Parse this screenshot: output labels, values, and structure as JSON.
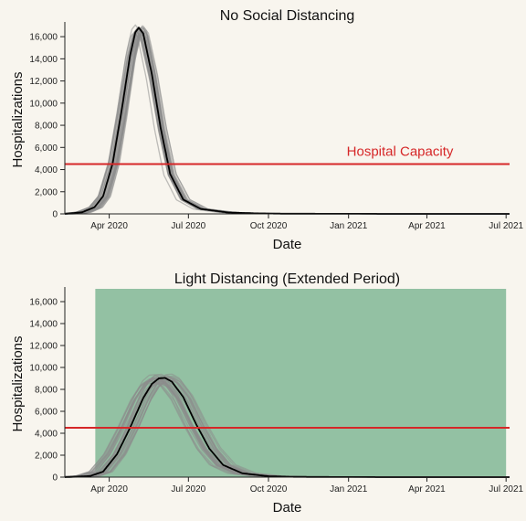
{
  "colors": {
    "background": "#f8f5ee",
    "capacity": "#d62728",
    "ensemble": "#8c8c8c",
    "median": "#000000",
    "distancing_period": "#93c1a3"
  },
  "chart_data": [
    {
      "type": "line",
      "title": "No Social Distancing",
      "xlabel": "Date",
      "ylabel": "Hospitalizations",
      "x_tick_labels": [
        "Apr 2020",
        "Jul 2020",
        "Oct 2020",
        "Jan 2021",
        "Apr 2021",
        "Jul 2021"
      ],
      "y_tick_labels": [
        "0",
        "2,000",
        "4,000",
        "6,000",
        "8,000",
        "10,000",
        "12,000",
        "14,000",
        "16,000"
      ],
      "ylim": [
        0,
        17000
      ],
      "xlim": [
        "2020-02-10",
        "2021-07-05"
      ],
      "capacity": {
        "label": "Hospital Capacity",
        "value": 4500
      },
      "shaded_period": null,
      "series": [
        {
          "role": "median",
          "peak_date": "2020-05-05",
          "x": [
            "2020-02-10",
            "2020-03-01",
            "2020-03-15",
            "2020-03-25",
            "2020-04-05",
            "2020-04-15",
            "2020-04-25",
            "2020-05-01",
            "2020-05-05",
            "2020-05-10",
            "2020-05-20",
            "2020-05-30",
            "2020-06-10",
            "2020-06-25",
            "2020-07-15",
            "2020-08-15",
            "2020-09-15",
            "2020-10-15",
            "2021-01-01",
            "2021-07-05"
          ],
          "values": [
            0,
            150,
            600,
            1600,
            4600,
            9200,
            14300,
            16400,
            16800,
            16300,
            12600,
            7800,
            3600,
            1300,
            450,
            130,
            50,
            20,
            5,
            0
          ]
        },
        {
          "role": "ensemble",
          "count": 30,
          "peak_date_spread_days": 6,
          "peak_values": [
            16000,
            17200
          ]
        }
      ]
    },
    {
      "type": "line",
      "title": "Light Distancing (Extended Period)",
      "xlabel": "Date",
      "ylabel": "Hospitalizations",
      "x_tick_labels": [
        "Apr 2020",
        "Jul 2020",
        "Oct 2020",
        "Jan 2021",
        "Apr 2021",
        "Jul 2021"
      ],
      "y_tick_labels": [
        "0",
        "2,000",
        "4,000",
        "6,000",
        "8,000",
        "10,000",
        "12,000",
        "14,000",
        "16,000"
      ],
      "ylim": [
        0,
        17000
      ],
      "xlim": [
        "2020-02-10",
        "2021-07-05"
      ],
      "capacity": {
        "label": "",
        "value": 4500
      },
      "shaded_period": {
        "start": "2020-03-16",
        "end": "2021-07-01"
      },
      "series": [
        {
          "role": "median",
          "peak_date": "2020-06-04",
          "x": [
            "2020-02-10",
            "2020-03-10",
            "2020-03-25",
            "2020-04-10",
            "2020-04-25",
            "2020-05-10",
            "2020-05-20",
            "2020-05-28",
            "2020-06-04",
            "2020-06-12",
            "2020-06-25",
            "2020-07-10",
            "2020-07-25",
            "2020-08-10",
            "2020-09-01",
            "2020-10-01",
            "2020-11-01",
            "2021-01-01",
            "2021-07-05"
          ],
          "values": [
            0,
            100,
            500,
            2100,
            4500,
            7200,
            8500,
            9000,
            9050,
            8700,
            7300,
            4800,
            2600,
            1100,
            350,
            80,
            25,
            5,
            0
          ]
        },
        {
          "role": "ensemble",
          "count": 30,
          "peak_date_spread_days": 14,
          "peak_values": [
            8500,
            9400
          ]
        }
      ]
    }
  ]
}
